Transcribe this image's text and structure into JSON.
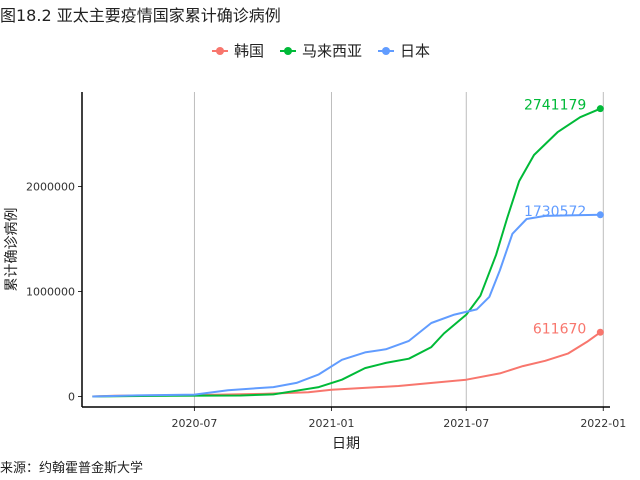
{
  "title": "图18.2 亚太主要疫情国家累计确诊病例",
  "source": "来源：约翰霍普金斯大学",
  "chart_data": {
    "type": "line",
    "xlabel": "日期",
    "ylabel": "累计确诊病例",
    "x_ticks": [
      "2020-07",
      "2021-01",
      "2021-07",
      "2022-01"
    ],
    "y_ticks": [
      "0",
      "1000000",
      "2000000"
    ],
    "y_tick_values": [
      0,
      1000000,
      2000000
    ],
    "xlim": [
      "2020-02-01",
      "2022-01-10"
    ],
    "ylim": [
      -100000,
      2900000
    ],
    "legend_position": "top",
    "grid": "vertical",
    "series": [
      {
        "name": "韩国",
        "color": "#F8766D",
        "end_label": "611670",
        "points": [
          [
            "2020-02-15",
            0
          ],
          [
            "2020-03-15",
            8000
          ],
          [
            "2020-07-01",
            13000
          ],
          [
            "2020-10-01",
            25000
          ],
          [
            "2020-12-01",
            40000
          ],
          [
            "2021-01-01",
            65000
          ],
          [
            "2021-04-01",
            100000
          ],
          [
            "2021-07-01",
            160000
          ],
          [
            "2021-08-15",
            220000
          ],
          [
            "2021-09-15",
            290000
          ],
          [
            "2021-10-15",
            340000
          ],
          [
            "2021-11-15",
            410000
          ],
          [
            "2021-12-10",
            520000
          ],
          [
            "2021-12-28",
            611670
          ]
        ]
      },
      {
        "name": "马来西亚",
        "color": "#00BA38",
        "end_label": "2741179",
        "points": [
          [
            "2020-02-15",
            0
          ],
          [
            "2020-06-01",
            8000
          ],
          [
            "2020-09-01",
            9500
          ],
          [
            "2020-10-15",
            20000
          ],
          [
            "2020-11-15",
            55000
          ],
          [
            "2020-12-15",
            90000
          ],
          [
            "2021-01-15",
            160000
          ],
          [
            "2021-02-15",
            270000
          ],
          [
            "2021-03-15",
            320000
          ],
          [
            "2021-04-15",
            360000
          ],
          [
            "2021-05-15",
            470000
          ],
          [
            "2021-06-01",
            600000
          ],
          [
            "2021-07-01",
            780000
          ],
          [
            "2021-07-20",
            960000
          ],
          [
            "2021-08-10",
            1350000
          ],
          [
            "2021-08-25",
            1700000
          ],
          [
            "2021-09-10",
            2050000
          ],
          [
            "2021-09-30",
            2300000
          ],
          [
            "2021-11-01",
            2520000
          ],
          [
            "2021-12-01",
            2660000
          ],
          [
            "2021-12-28",
            2741179
          ]
        ]
      },
      {
        "name": "日本",
        "color": "#619CFF",
        "end_label": "1730572",
        "points": [
          [
            "2020-02-15",
            0
          ],
          [
            "2020-04-15",
            10000
          ],
          [
            "2020-07-01",
            18000
          ],
          [
            "2020-08-15",
            60000
          ],
          [
            "2020-10-15",
            90000
          ],
          [
            "2020-11-15",
            130000
          ],
          [
            "2020-12-15",
            210000
          ],
          [
            "2021-01-15",
            350000
          ],
          [
            "2021-02-15",
            420000
          ],
          [
            "2021-03-15",
            450000
          ],
          [
            "2021-04-15",
            530000
          ],
          [
            "2021-05-15",
            700000
          ],
          [
            "2021-06-15",
            780000
          ],
          [
            "2021-07-15",
            830000
          ],
          [
            "2021-08-01",
            950000
          ],
          [
            "2021-08-15",
            1200000
          ],
          [
            "2021-09-01",
            1550000
          ],
          [
            "2021-09-20",
            1690000
          ],
          [
            "2021-10-15",
            1720000
          ],
          [
            "2021-12-28",
            1730572
          ]
        ]
      }
    ]
  }
}
